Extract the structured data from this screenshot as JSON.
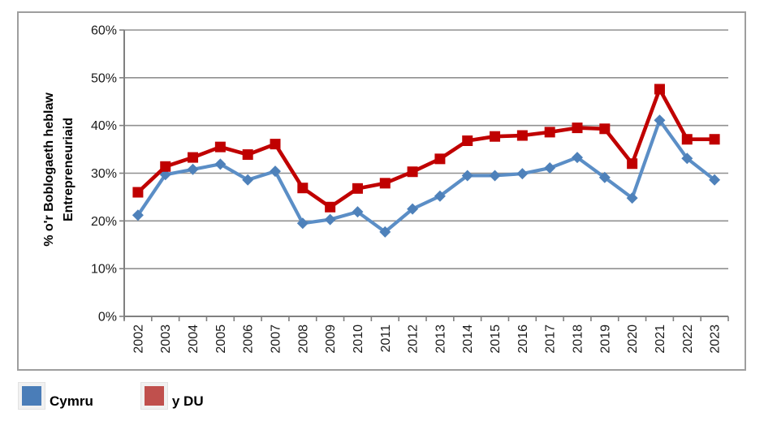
{
  "chart_data": {
    "type": "line",
    "title": "",
    "ylabel_lines": [
      "% o'r Boblogaeth heblaw",
      "Entrepreneuriaid"
    ],
    "xlabel": "",
    "categories": [
      "2002",
      "2003",
      "2004",
      "2005",
      "2006",
      "2007",
      "2008",
      "2009",
      "2010",
      "2011",
      "2012",
      "2013",
      "2014",
      "2015",
      "2016",
      "2017",
      "2018",
      "2019",
      "2020",
      "2021",
      "2022",
      "2023"
    ],
    "series": [
      {
        "name": "Cymru",
        "marker": "diamond",
        "line_color": "#5b8ec6",
        "marker_color": "#4e81ba",
        "legend_color": "#4a7db8",
        "values": [
          21.2,
          29.7,
          30.8,
          31.9,
          28.6,
          30.4,
          19.5,
          20.3,
          21.9,
          17.7,
          22.5,
          25.2,
          29.5,
          29.5,
          29.9,
          31.1,
          33.3,
          29.1,
          24.8,
          41.1,
          33.1,
          28.6
        ]
      },
      {
        "name": "y DU",
        "marker": "square",
        "line_color": "#c00000",
        "marker_color": "#c00000",
        "legend_color": "#c0504d",
        "values": [
          26.0,
          31.4,
          33.3,
          35.5,
          33.9,
          36.1,
          26.9,
          22.9,
          26.8,
          27.9,
          30.3,
          33.0,
          36.8,
          37.7,
          37.9,
          38.6,
          39.5,
          39.3,
          32.0,
          47.6,
          37.1,
          37.1
        ]
      }
    ],
    "ylim": [
      0,
      60
    ],
    "ytick_step": 10,
    "yticks_labels": [
      "0%",
      "10%",
      "20%",
      "30%",
      "40%",
      "50%",
      "60%"
    ],
    "grid": true,
    "gridline_color": "#909090",
    "legend_position": "bottom-left"
  }
}
